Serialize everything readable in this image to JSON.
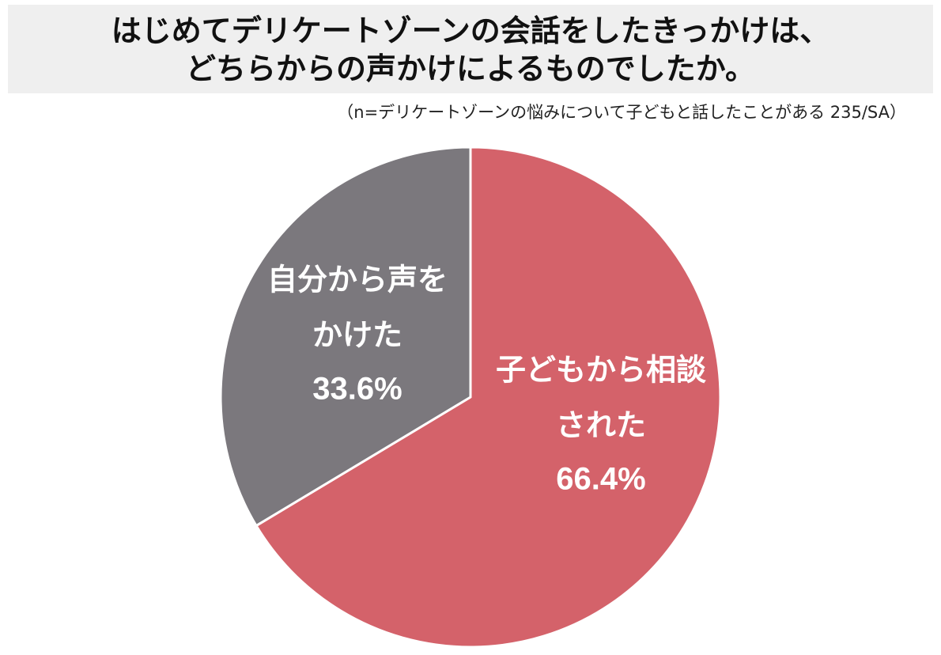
{
  "title": {
    "line1": "はじめてデリケートゾーンの会話をしたきっかけは、",
    "line2": "どちらからの声かけによるものでしたか。"
  },
  "subtitle": "（n=デリケートゾーンの悩みについて子どもと話したことがある 235/SA）",
  "colors": {
    "title_background": "#efefef",
    "slice_child": "#d4626a",
    "slice_self": "#7b787d",
    "label_text": "#ffffff"
  },
  "chart_data": {
    "type": "pie",
    "title": "はじめてデリケートゾーンの会話をしたきっかけは、どちらからの声かけによるものでしたか。",
    "subtitle": "（n=デリケートゾーンの悩みについて子どもと話したことがある 235/SA）",
    "unit": "%",
    "slices": [
      {
        "label": "子どもから相談された",
        "label_lines": [
          "子どもから相談",
          "された"
        ],
        "value": 66.4,
        "value_label": "66.4%",
        "color": "#d4626a"
      },
      {
        "label": "自分から声をかけた",
        "label_lines": [
          "自分から声を",
          "かけた"
        ],
        "value": 33.6,
        "value_label": "33.6%",
        "color": "#7b787d"
      }
    ],
    "start_angle": "12 o'clock",
    "direction": "clockwise",
    "legend": "none (labels inside slices)"
  }
}
